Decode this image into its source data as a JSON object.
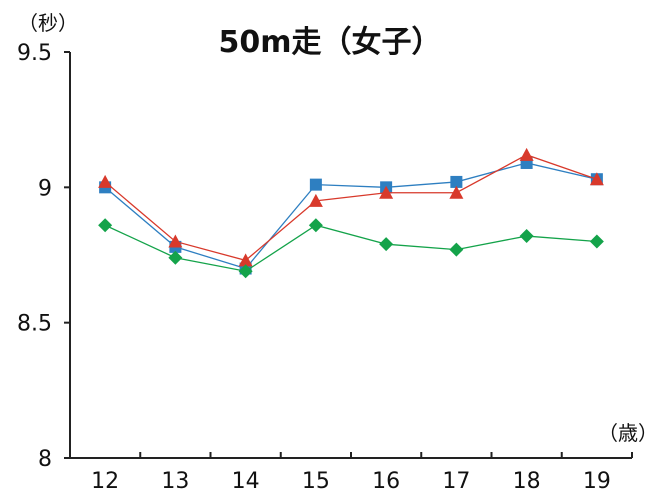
{
  "chart_data": {
    "type": "line",
    "title": "50m走（女子）",
    "y_unit": "（秒）",
    "x_unit": "（歳）",
    "categories": [
      "12",
      "13",
      "14",
      "15",
      "16",
      "17",
      "18",
      "19"
    ],
    "y_tick_labels": [
      "9.5",
      "9",
      "8.5",
      "8"
    ],
    "y_ticks": [
      9.5,
      9.0,
      8.5,
      8.0
    ],
    "ylim": [
      8,
      9.5
    ],
    "grid": false,
    "legend": "none",
    "series": [
      {
        "values": [
          9.0,
          8.78,
          8.7,
          9.01,
          9.0,
          9.02,
          9.09,
          9.03
        ],
        "color": "#2e7fc1",
        "marker": "square"
      },
      {
        "values": [
          9.02,
          8.8,
          8.73,
          8.95,
          8.98,
          8.98,
          9.12,
          9.03
        ],
        "color": "#d8392b",
        "marker": "triangle"
      },
      {
        "values": [
          8.86,
          8.74,
          8.69,
          8.86,
          8.79,
          8.77,
          8.82,
          8.8
        ],
        "color": "#14a34a",
        "marker": "diamond"
      }
    ]
  }
}
